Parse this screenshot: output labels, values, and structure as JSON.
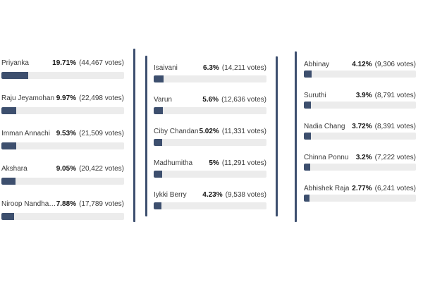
{
  "theme": {
    "background": "#ffffff",
    "bar_fill": "#3d4f6e",
    "bar_track": "#ececec",
    "divider": "#3d4f6f",
    "percent_text": "#141414",
    "label_text": "#3a3a3a"
  },
  "chart_data": {
    "type": "bar",
    "orientation": "horizontal",
    "title": "",
    "xlabel": "",
    "ylabel": "",
    "value_unit": "percent of total votes",
    "xlim": [
      0,
      100
    ],
    "grid": false,
    "legend": "none",
    "columns": [
      {
        "items": [
          {
            "name": "Priyanka",
            "percent": "19.71%",
            "value": 19.71,
            "votes_label": "(44,467 votes)",
            "votes": 44467
          },
          {
            "name": "Raju Jeyamohan",
            "percent": "9.97%",
            "value": 9.97,
            "votes_label": "(22,498 votes)",
            "votes": 22498
          },
          {
            "name": "Imman Annachi",
            "percent": "9.53%",
            "value": 9.53,
            "votes_label": "(21,509 votes)",
            "votes": 21509
          },
          {
            "name": "Akshara",
            "percent": "9.05%",
            "value": 9.05,
            "votes_label": "(20,422 votes)",
            "votes": 20422
          },
          {
            "name": "Niroop Nandhak...",
            "percent": "7.88%",
            "value": 7.88,
            "votes_label": "(17,789 votes)",
            "votes": 17789
          }
        ]
      },
      {
        "items": [
          {
            "name": "Isaivani",
            "percent": "6.3%",
            "value": 6.3,
            "votes_label": "(14,211 votes)",
            "votes": 14211
          },
          {
            "name": "Varun",
            "percent": "5.6%",
            "value": 5.6,
            "votes_label": "(12,636 votes)",
            "votes": 12636
          },
          {
            "name": "Ciby Chandan",
            "percent": "5.02%",
            "value": 5.02,
            "votes_label": "(11,331 votes)",
            "votes": 11331
          },
          {
            "name": "Madhumitha",
            "percent": "5%",
            "value": 5,
            "votes_label": "(11,291 votes)",
            "votes": 11291
          },
          {
            "name": "Iykki Berry",
            "percent": "4.23%",
            "value": 4.23,
            "votes_label": "(9,538 votes)",
            "votes": 9538
          }
        ]
      },
      {
        "items": [
          {
            "name": "Abhinay",
            "percent": "4.12%",
            "value": 4.12,
            "votes_label": "(9,306 votes)",
            "votes": 9306
          },
          {
            "name": "Suruthi",
            "percent": "3.9%",
            "value": 3.9,
            "votes_label": "(8,791 votes)",
            "votes": 8791
          },
          {
            "name": "Nadia Chang",
            "percent": "3.72%",
            "value": 3.72,
            "votes_label": "(8,391 votes)",
            "votes": 8391
          },
          {
            "name": "Chinna Ponnu",
            "percent": "3.2%",
            "value": 3.2,
            "votes_label": "(7,222 votes)",
            "votes": 7222
          },
          {
            "name": "Abhishek Raja",
            "percent": "2.77%",
            "value": 2.77,
            "votes_label": "(6,241 votes)",
            "votes": 6241
          }
        ]
      }
    ]
  }
}
